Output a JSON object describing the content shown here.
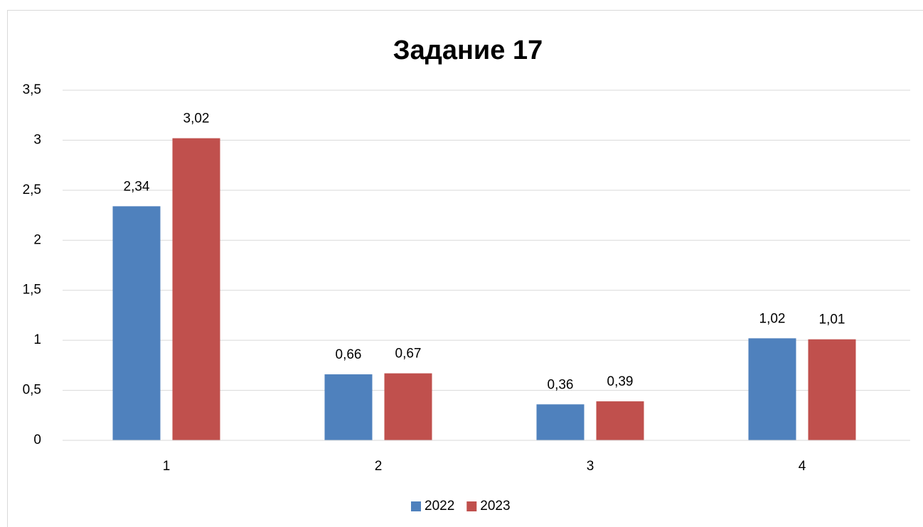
{
  "chart_data": {
    "type": "bar",
    "title": "Задание 17",
    "categories": [
      "1",
      "2",
      "3",
      "4"
    ],
    "series": [
      {
        "name": "2022",
        "color": "#4f81bd",
        "values": [
          2.34,
          0.66,
          0.36,
          1.02
        ],
        "value_labels": [
          "2,34",
          "0,66",
          "0,36",
          "1,02"
        ]
      },
      {
        "name": "2023",
        "color": "#c0504d",
        "values": [
          3.02,
          0.67,
          0.39,
          1.01
        ],
        "value_labels": [
          "3,02",
          "0,67",
          "0,39",
          "1,01"
        ]
      }
    ],
    "ylim": [
      0,
      3.5
    ],
    "yticks": [
      0,
      {
        "value": 0.5,
        "label": "0,5"
      },
      1,
      {
        "value": 1.5,
        "label": "1,5"
      },
      2,
      {
        "value": 2.5,
        "label": "2,5"
      },
      3,
      {
        "value": 3.5,
        "label": "3,5"
      }
    ],
    "grid": true,
    "legend": "bottom"
  }
}
